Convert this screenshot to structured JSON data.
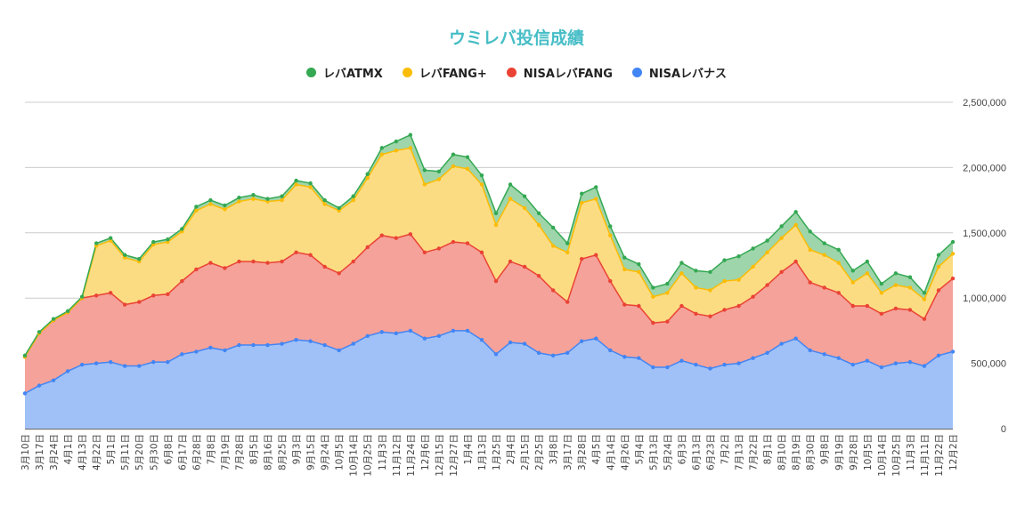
{
  "chart_data": {
    "type": "area",
    "stacked": true,
    "title": "ウミレバ投信成績",
    "title_color": "#46bdc6",
    "legend_position": "top",
    "grid": true,
    "ylim": [
      0,
      2500000
    ],
    "y_ticks": [
      "0",
      "500,000",
      "1,000,000",
      "1,500,000",
      "2,000,000",
      "2,500,000"
    ],
    "y_tick_values": [
      0,
      500000,
      1000000,
      1500000,
      2000000,
      2500000
    ],
    "categories": [
      "3月10日",
      "3月17日",
      "3月24日",
      "4月1日",
      "4月13日",
      "4月22日",
      "5月1日",
      "5月11日",
      "5月20日",
      "5月30日",
      "6月8日",
      "6月17日",
      "6月28日",
      "7月8日",
      "7月19日",
      "7月28日",
      "8月5日",
      "8月16日",
      "8月25日",
      "9月3日",
      "9月15日",
      "9月24日",
      "10月5日",
      "10月14日",
      "10月25日",
      "11月3日",
      "11月12日",
      "11月24日",
      "12月6日",
      "12月15日",
      "12月27日",
      "1月4日",
      "1月13日",
      "1月25日",
      "2月4日",
      "2月15日",
      "2月25日",
      "3月8日",
      "3月17日",
      "3月28日",
      "4月5日",
      "4月14日",
      "4月26日",
      "5月4日",
      "5月13日",
      "5月24日",
      "6月3日",
      "6月13日",
      "6月23日",
      "7月2日",
      "7月13日",
      "7月22日",
      "8月1日",
      "8月10日",
      "8月19日",
      "8月30日",
      "9月8日",
      "9月19日",
      "9月28日",
      "10月5日",
      "10月14日",
      "10月25日",
      "11月3日",
      "11月11日",
      "11月22日",
      "12月2日"
    ],
    "series": [
      {
        "name": "NISAレバナス",
        "color": "#4285f4",
        "fill": "#a0c1f7",
        "values": [
          270000,
          330000,
          370000,
          440000,
          490000,
          500000,
          510000,
          480000,
          480000,
          510000,
          510000,
          570000,
          590000,
          620000,
          600000,
          640000,
          640000,
          640000,
          650000,
          680000,
          670000,
          640000,
          600000,
          650000,
          710000,
          740000,
          730000,
          750000,
          690000,
          710000,
          750000,
          750000,
          680000,
          570000,
          660000,
          650000,
          580000,
          560000,
          580000,
          670000,
          690000,
          600000,
          550000,
          540000,
          470000,
          470000,
          520000,
          490000,
          460000,
          490000,
          500000,
          540000,
          580000,
          650000,
          690000,
          600000,
          570000,
          540000,
          490000,
          520000,
          470000,
          500000,
          510000,
          480000,
          560000,
          590000
        ]
      },
      {
        "name": "NISAレバFANG",
        "color": "#ea4335",
        "fill": "#f4a29a",
        "values": [
          280000,
          400000,
          460000,
          450000,
          510000,
          520000,
          530000,
          470000,
          490000,
          510000,
          520000,
          560000,
          630000,
          650000,
          630000,
          640000,
          640000,
          630000,
          630000,
          670000,
          660000,
          600000,
          590000,
          630000,
          680000,
          740000,
          730000,
          740000,
          660000,
          670000,
          680000,
          670000,
          670000,
          560000,
          620000,
          590000,
          590000,
          500000,
          390000,
          630000,
          640000,
          530000,
          400000,
          400000,
          340000,
          350000,
          420000,
          390000,
          400000,
          420000,
          440000,
          470000,
          520000,
          550000,
          590000,
          520000,
          510000,
          500000,
          450000,
          420000,
          410000,
          420000,
          400000,
          360000,
          500000,
          560000
        ]
      },
      {
        "name": "レバFANG+",
        "color": "#fbbc04",
        "fill": "#fcdc83",
        "values": [
          0,
          0,
          0,
          0,
          0,
          380000,
          400000,
          360000,
          310000,
          390000,
          400000,
          380000,
          450000,
          450000,
          450000,
          460000,
          480000,
          470000,
          470000,
          520000,
          520000,
          480000,
          480000,
          470000,
          530000,
          620000,
          670000,
          660000,
          520000,
          530000,
          580000,
          570000,
          520000,
          430000,
          480000,
          450000,
          390000,
          340000,
          380000,
          430000,
          430000,
          350000,
          270000,
          260000,
          200000,
          220000,
          250000,
          200000,
          200000,
          220000,
          200000,
          230000,
          250000,
          260000,
          280000,
          250000,
          250000,
          230000,
          180000,
          250000,
          160000,
          180000,
          170000,
          150000,
          180000,
          190000
        ]
      },
      {
        "name": "レバATMX",
        "color": "#34a853",
        "fill": "#9fd5ab",
        "values": [
          10000,
          10000,
          10000,
          10000,
          10000,
          20000,
          20000,
          20000,
          20000,
          20000,
          20000,
          20000,
          30000,
          30000,
          30000,
          30000,
          30000,
          20000,
          30000,
          30000,
          30000,
          30000,
          20000,
          30000,
          30000,
          50000,
          70000,
          100000,
          110000,
          60000,
          90000,
          90000,
          70000,
          90000,
          110000,
          90000,
          90000,
          140000,
          70000,
          70000,
          90000,
          70000,
          90000,
          60000,
          70000,
          70000,
          80000,
          130000,
          140000,
          160000,
          180000,
          140000,
          90000,
          90000,
          100000,
          140000,
          90000,
          100000,
          90000,
          90000,
          70000,
          90000,
          80000,
          50000,
          90000,
          90000
        ]
      }
    ]
  }
}
